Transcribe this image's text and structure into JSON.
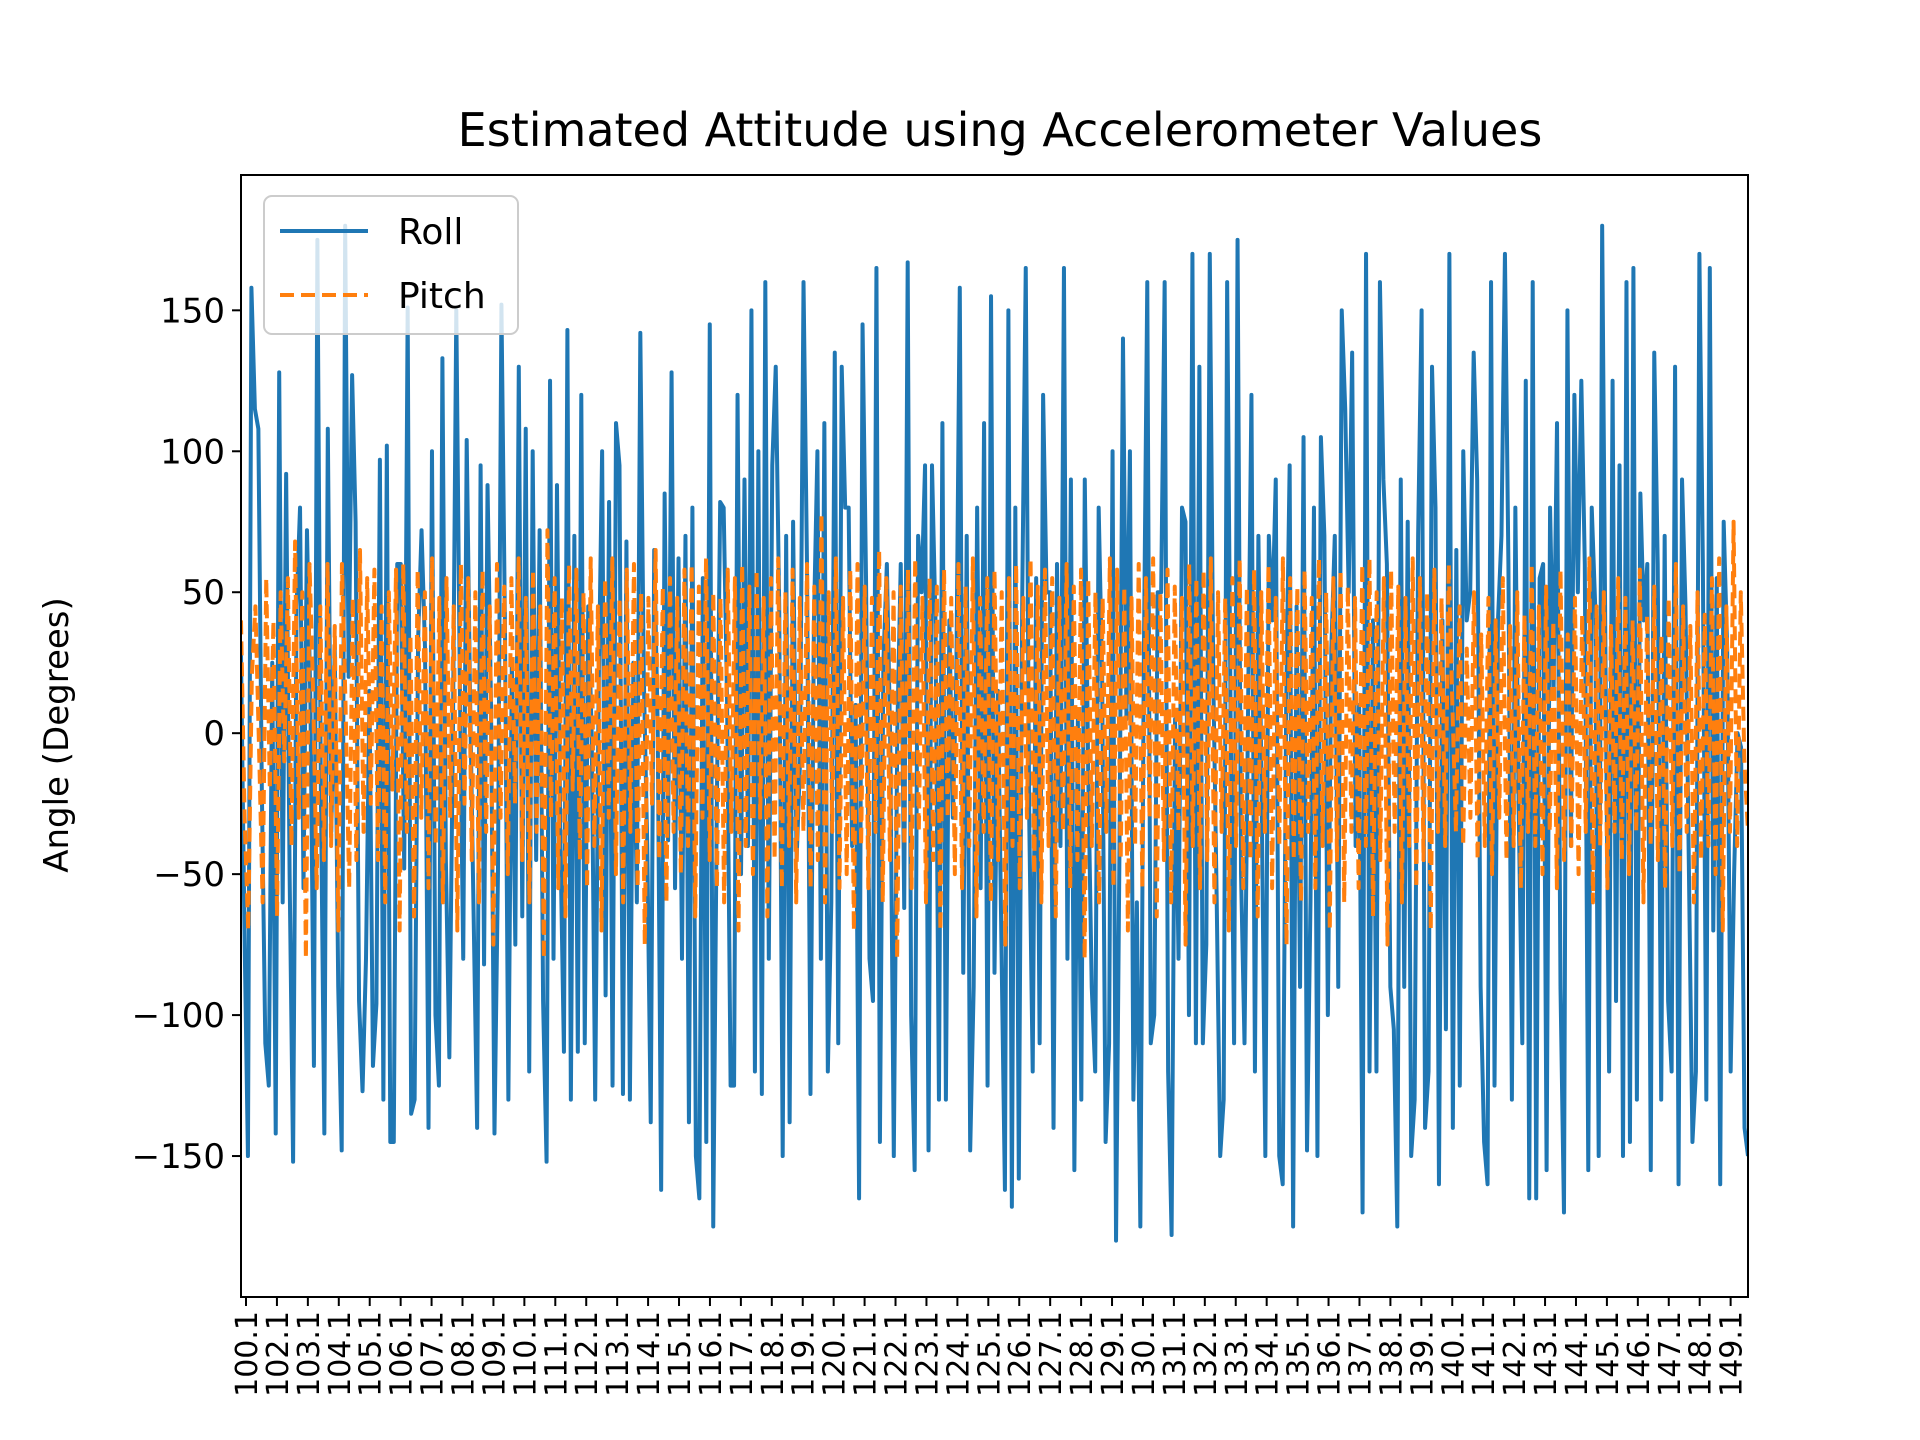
{
  "chart_data": {
    "type": "line",
    "title": "Estimated Attitude using Accelerometer Values",
    "xlabel": "",
    "ylabel": "Angle (Degrees)",
    "ylim": [
      -200,
      198
    ],
    "yticks": [
      -150,
      -100,
      -50,
      0,
      50,
      100,
      150
    ],
    "ytick_labels": [
      "−150",
      "−100",
      "−50",
      "0",
      "50",
      "100",
      "150"
    ],
    "grid": false,
    "legend_position": "upper-left",
    "x_range": [
      100,
      150
    ],
    "xtick_labels": [
      "100.1",
      "102.1",
      "103.1",
      "104.1",
      "105.1",
      "106.1",
      "107.1",
      "108.1",
      "109.1",
      "110.1",
      "111.1",
      "112.1",
      "113.1",
      "114.1",
      "115.1",
      "116.1",
      "117.1",
      "118.1",
      "119.1",
      "120.1",
      "121.1",
      "122.1",
      "123.1",
      "124.1",
      "125.1",
      "126.1",
      "127.1",
      "128.1",
      "129.1",
      "130.1",
      "131.1",
      "132.1",
      "133.1",
      "134.1",
      "135.1",
      "136.1",
      "137.1",
      "138.1",
      "139.1",
      "140.1",
      "141.1",
      "142.1",
      "143.1",
      "144.1",
      "145.1",
      "146.1",
      "147.1",
      "148.1",
      "149.1"
    ],
    "series": [
      {
        "name": "Roll",
        "color": "#1f77b4",
        "style": "solid",
        "values": [
          28,
          -70,
          -150,
          158,
          115,
          108,
          -20,
          -110,
          -125,
          25,
          -142,
          128,
          -60,
          92,
          -50,
          -152,
          45,
          80,
          -55,
          72,
          10,
          -118,
          175,
          -20,
          -142,
          108,
          -35,
          30,
          -90,
          -148,
          180,
          20,
          127,
          75,
          -95,
          -127,
          -80,
          15,
          -118,
          -96,
          97,
          -130,
          102,
          -145,
          -145,
          60,
          60,
          -48,
          151,
          -135,
          -130,
          33,
          72,
          30,
          -140,
          100,
          -100,
          -125,
          133,
          -45,
          -115,
          -5,
          150,
          20,
          -80,
          104,
          10,
          -65,
          -140,
          95,
          -82,
          88,
          10,
          -142,
          -50,
          152,
          40,
          -130,
          25,
          -75,
          130,
          -65,
          108,
          -120,
          100,
          -45,
          72,
          -95,
          -152,
          125,
          -80,
          88,
          -40,
          -113,
          143,
          -130,
          70,
          -113,
          120,
          -110,
          45,
          0,
          -130,
          15,
          100,
          -93,
          82,
          -125,
          110,
          95,
          -128,
          68,
          -130,
          25,
          -60,
          142,
          20,
          -40,
          -138,
          65,
          3,
          -162,
          85,
          -38,
          128,
          -55,
          62,
          -80,
          70,
          -138,
          80,
          -150,
          -165,
          55,
          -145,
          145,
          -175,
          -30,
          82,
          80,
          10,
          -125,
          -125,
          120,
          -50,
          90,
          -40,
          150,
          -120,
          100,
          -128,
          160,
          -80,
          95,
          130,
          45,
          -150,
          70,
          -138,
          75,
          -45,
          -10,
          160,
          60,
          -128,
          40,
          100,
          -80,
          110,
          -120,
          -60,
          135,
          -110,
          130,
          80,
          80,
          -40,
          10,
          -165,
          145,
          55,
          -80,
          -95,
          165,
          -145,
          25,
          60,
          -5,
          -150,
          0,
          60,
          -62,
          167,
          -100,
          -155,
          70,
          50,
          95,
          -148,
          95,
          40,
          -130,
          110,
          -130,
          40,
          -30,
          20,
          158,
          -85,
          70,
          -148,
          -90,
          80,
          -55,
          110,
          -125,
          155,
          -85,
          15,
          -75,
          -162,
          150,
          -168,
          80,
          -158,
          50,
          165,
          -30,
          -120,
          55,
          -110,
          120,
          50,
          50,
          -140,
          60,
          -40,
          165,
          -80,
          90,
          -155,
          5,
          -130,
          90,
          -15,
          -90,
          -120,
          80,
          20,
          -145,
          -110,
          100,
          -180,
          -40,
          140,
          5,
          100,
          -130,
          -60,
          -175,
          25,
          160,
          -110,
          -100,
          50,
          50,
          160,
          -120,
          -178,
          5,
          -80,
          80,
          75,
          -100,
          170,
          -110,
          130,
          -110,
          -75,
          170,
          20,
          -60,
          -150,
          -130,
          160,
          5,
          -110,
          175,
          -50,
          -110,
          5,
          120,
          -120,
          70,
          -30,
          -150,
          70,
          40,
          90,
          -150,
          -160,
          10,
          95,
          -175,
          45,
          -90,
          105,
          -148,
          -60,
          80,
          -150,
          105,
          70,
          -100,
          30,
          70,
          -90,
          150,
          115,
          50,
          135,
          -40,
          10,
          -170,
          170,
          -120,
          40,
          -120,
          160,
          90,
          60,
          -90,
          -105,
          -175,
          90,
          -90,
          75,
          -150,
          -130,
          70,
          150,
          -140,
          -120,
          130,
          80,
          -160,
          40,
          -105,
          170,
          -140,
          65,
          -125,
          100,
          40,
          50,
          135,
          90,
          -90,
          -145,
          -160,
          160,
          -125,
          40,
          70,
          170,
          60,
          -130,
          80,
          -30,
          -110,
          125,
          -165,
          160,
          -165,
          55,
          60,
          -155,
          80,
          15,
          110,
          -90,
          -170,
          150,
          -40,
          120,
          50,
          125,
          60,
          -155,
          80,
          45,
          -150,
          180,
          20,
          -120,
          125,
          -95,
          95,
          -150,
          160,
          -145,
          165,
          -130,
          85,
          40,
          60,
          -155,
          135,
          60,
          -130,
          70,
          -95,
          -120,
          130,
          -160,
          90,
          45,
          -50,
          -145,
          -120,
          170,
          60,
          -130,
          165,
          -70,
          55,
          -160,
          75,
          30,
          -120,
          -50,
          0,
          -5,
          -140,
          -150
        ]
      },
      {
        "name": "Pitch",
        "color": "#ff7f0e",
        "style": "dashed",
        "values": [
          40,
          -30,
          -70,
          20,
          45,
          -5,
          -60,
          55,
          -20,
          40,
          -65,
          50,
          -10,
          55,
          -40,
          68,
          -30,
          50,
          -80,
          60,
          15,
          -55,
          45,
          -45,
          60,
          -40,
          38,
          -70,
          60,
          10,
          -55,
          48,
          -45,
          65,
          -35,
          55,
          -25,
          58,
          -45,
          45,
          -60,
          50,
          -20,
          58,
          -70,
          60,
          -35,
          35,
          -65,
          58,
          -30,
          50,
          -55,
          62,
          -40,
          48,
          -60,
          55,
          -30,
          45,
          -70,
          60,
          -25,
          55,
          -45,
          50,
          -60,
          58,
          -35,
          45,
          -75,
          60,
          -30,
          52,
          -50,
          55,
          -25,
          62,
          -45,
          48,
          -60,
          58,
          -35,
          45,
          -80,
          72,
          -30,
          55,
          -55,
          48,
          -65,
          60,
          -20,
          58,
          -45,
          50,
          -55,
          62,
          -40,
          45,
          -70,
          55,
          -30,
          62,
          -50,
          48,
          -60,
          58,
          -35,
          60,
          -55,
          50,
          -75,
          48,
          -25,
          65,
          -45,
          52,
          -60,
          55,
          -35,
          48,
          -50,
          58,
          -40,
          60,
          -65,
          52,
          -30,
          62,
          -45,
          50,
          -55,
          48,
          -60,
          58,
          -35,
          55,
          -70,
          60,
          -40,
          52,
          -50,
          58,
          -30,
          48,
          -65,
          55,
          -45,
          62,
          -55,
          50,
          -40,
          58,
          -60,
          48,
          -35,
          60,
          -55,
          52,
          -45,
          78,
          -60,
          50,
          -35,
          62,
          -55,
          48,
          -50,
          58,
          -70,
          60,
          -40,
          52,
          -55,
          48,
          -35,
          65,
          -60,
          55,
          -45,
          50,
          -80,
          52,
          -40,
          58,
          -55,
          62,
          -35,
          48,
          -60,
          55,
          -45,
          52,
          -70,
          58,
          -30,
          48,
          -50,
          60,
          -55,
          52,
          -40,
          62,
          -65,
          48,
          -35,
          55,
          -60,
          58,
          -45,
          50,
          -75,
          55,
          -40,
          60,
          -55,
          48,
          -30,
          62,
          -50,
          52,
          -60,
          58,
          -40,
          55,
          -65,
          48,
          -35,
          60,
          -55,
          52,
          -45,
          58,
          -80,
          55,
          -40,
          50,
          -60,
          48,
          -35,
          62,
          -55,
          58,
          -45,
          52,
          -70,
          48,
          -40,
          60,
          -55,
          55,
          -30,
          62,
          -65,
          50,
          -45,
          58,
          -60,
          52,
          -35,
          48,
          -75,
          60,
          -40,
          55,
          -55,
          58,
          -45,
          62,
          -60,
          50,
          -35,
          48,
          -70,
          55,
          -40,
          62,
          -55,
          52,
          -45,
          58,
          -65,
          50,
          -35,
          60,
          -55,
          48,
          -40,
          62,
          -75,
          55,
          -45,
          52,
          -60,
          58,
          -35,
          48,
          -55,
          62,
          -40,
          50,
          -70,
          55,
          -45,
          58,
          -60,
          52,
          -35,
          48,
          -55,
          60,
          -40,
          62,
          -65,
          50,
          -45,
          55,
          -75,
          58,
          -35,
          52,
          -60,
          48,
          -40,
          62,
          -55,
          55,
          -45,
          50,
          -70,
          58,
          -35,
          48,
          -40,
          60,
          10,
          -35,
          45,
          -40,
          30,
          -30,
          50,
          -45,
          35,
          -40,
          48,
          -50,
          40,
          -30,
          55,
          -45,
          38,
          -40,
          50,
          -55,
          42,
          -35,
          60,
          -40,
          45,
          -50,
          52,
          -35,
          40,
          -55,
          58,
          -45,
          35,
          -40,
          48,
          -50,
          42,
          -35,
          62,
          -60,
          45,
          -40,
          50,
          -55,
          38,
          -35,
          55,
          -45,
          48,
          -50,
          40,
          -35,
          58,
          -60,
          42,
          -40,
          52,
          -45,
          35,
          -55,
          48,
          -40,
          60,
          -50,
          45,
          -35,
          38,
          -60,
          50,
          -45,
          42,
          -40,
          55,
          -50,
          62,
          -70,
          45,
          -35,
          75,
          -40,
          50,
          -10,
          -35
        ]
      }
    ]
  }
}
